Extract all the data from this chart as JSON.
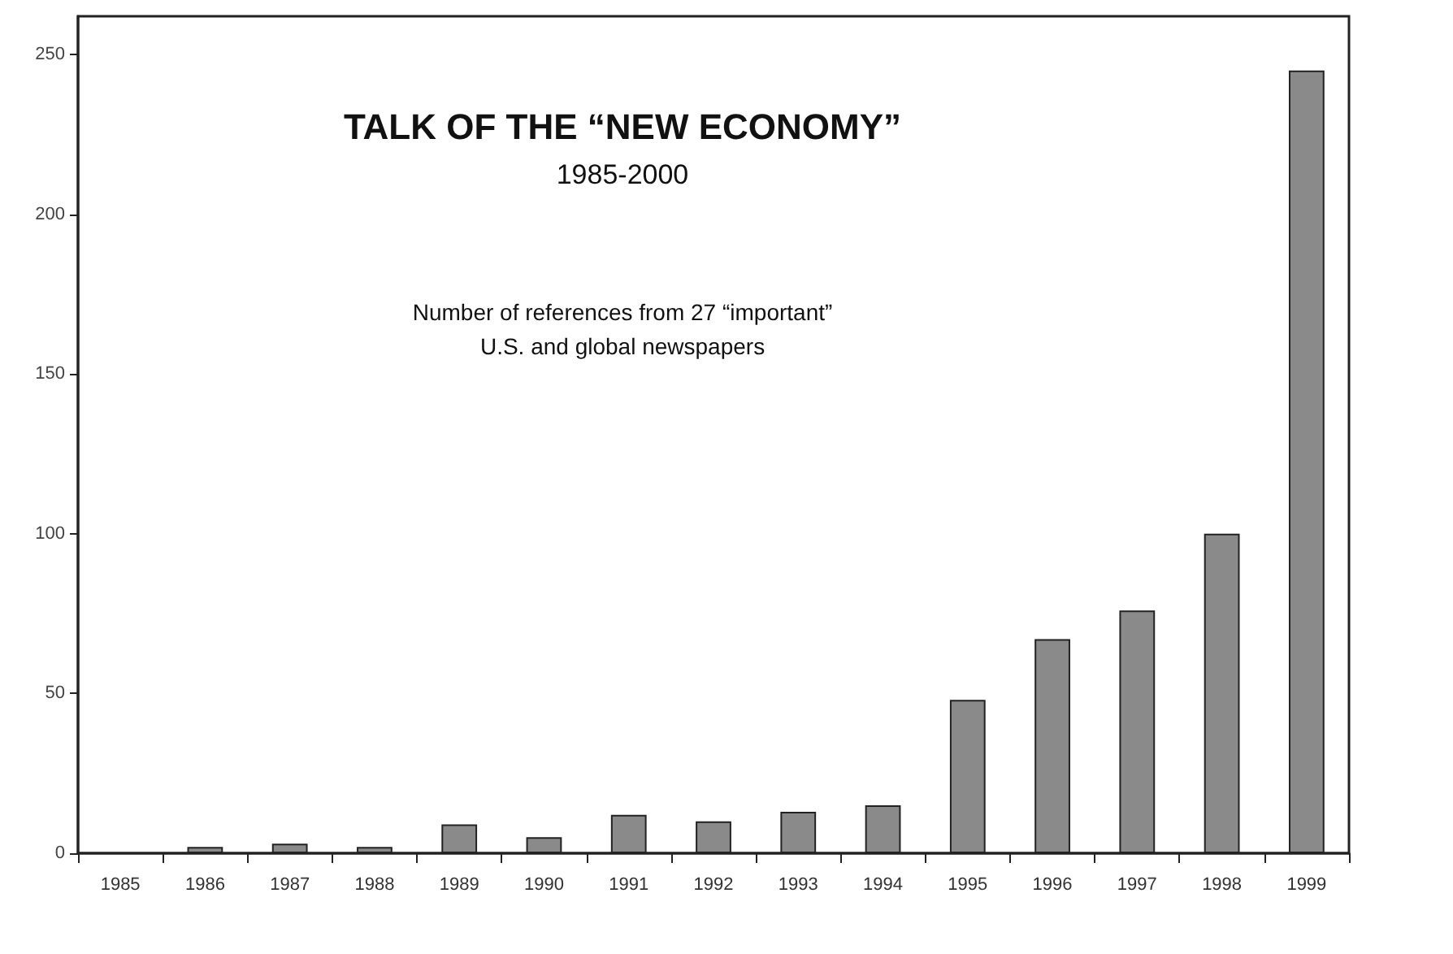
{
  "chart_data": {
    "type": "bar",
    "title": "TALK OF THE “NEW ECONOMY”",
    "subtitle": "1985-2000",
    "annotations": [
      "Number of references from 27 “important”",
      "U.S. and global newspapers"
    ],
    "categories": [
      "1985",
      "1986",
      "1987",
      "1988",
      "1989",
      "1990",
      "1991",
      "1992",
      "1993",
      "1994",
      "1995",
      "1996",
      "1997",
      "1998",
      "1999"
    ],
    "values": [
      0,
      2,
      3,
      2,
      9,
      5,
      12,
      10,
      13,
      15,
      48,
      67,
      76,
      100,
      245
    ],
    "color": "#8a8a8a",
    "ylim": [
      0,
      262
    ],
    "yticks": [
      0,
      50,
      100,
      150,
      200,
      250
    ],
    "grid": false
  }
}
